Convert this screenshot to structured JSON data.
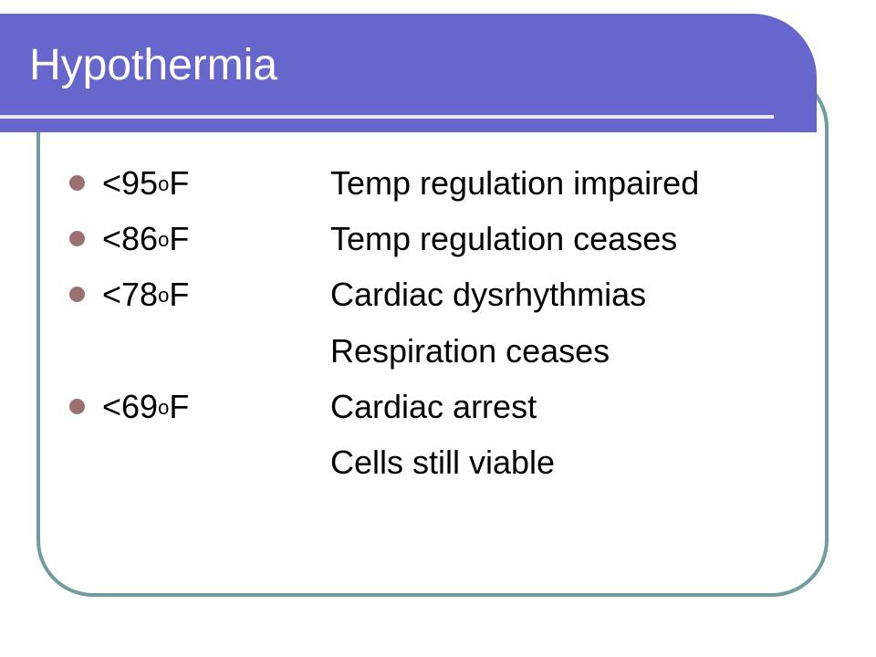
{
  "title": "Hypothermia",
  "items": [
    {
      "temp": "<95",
      "degree": "o",
      "unit": "F",
      "lines": [
        "Temp regulation impaired"
      ]
    },
    {
      "temp": "<86",
      "degree": "o",
      "unit": "F",
      "lines": [
        "Temp regulation ceases"
      ]
    },
    {
      "temp": "<78",
      "degree": "o",
      "unit": "F",
      "lines": [
        "Cardiac dysrhythmias",
        "Respiration ceases"
      ]
    },
    {
      "temp": "<69",
      "degree": "o",
      "unit": "F",
      "lines": [
        "Cardiac arrest",
        "Cells still viable"
      ]
    }
  ]
}
